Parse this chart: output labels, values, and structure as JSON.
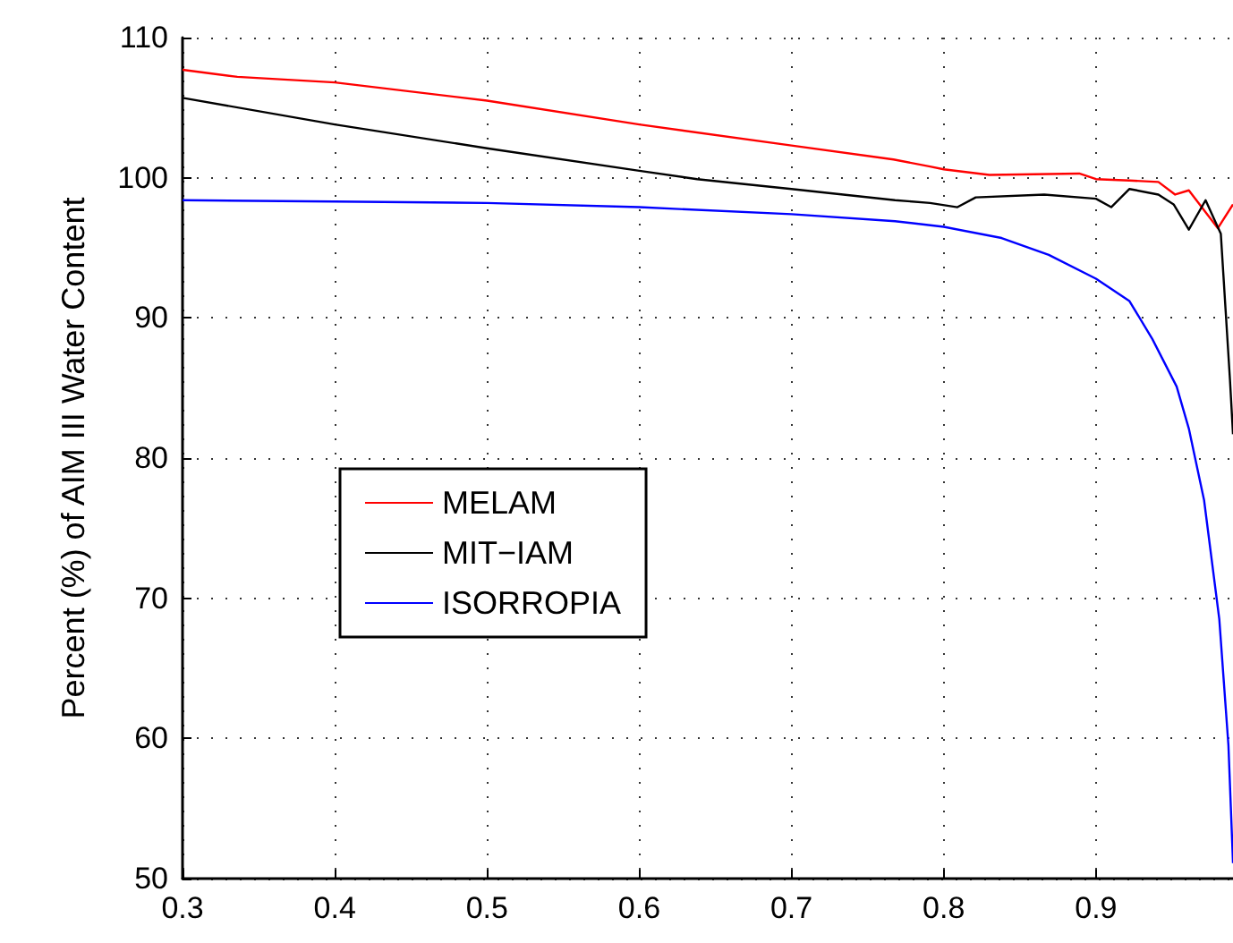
{
  "chart_data": {
    "type": "line",
    "ylabel": "Percent (%) of AIM III Water Content",
    "xlim": [
      0.3,
      0.99
    ],
    "xticks": [
      0.3,
      0.4,
      0.5,
      0.6,
      0.7,
      0.8,
      0.9
    ],
    "ylim": [
      50,
      110
    ],
    "yticks": [
      50,
      60,
      70,
      80,
      90,
      100,
      110
    ],
    "grid": true,
    "legend": "left",
    "marker": "none",
    "line_style": "solid",
    "series": [
      {
        "name": "MELAM",
        "color": "#ff0000",
        "x": [
          0.3,
          0.336,
          0.4,
          0.5,
          0.6,
          0.7,
          0.767,
          0.791,
          0.8,
          0.83,
          0.889,
          0.9,
          0.922,
          0.941,
          0.952,
          0.961,
          0.98,
          0.99
        ],
        "values": [
          107.7,
          107.2,
          106.8,
          105.5,
          103.8,
          102.3,
          101.3,
          100.8,
          100.6,
          100.2,
          100.3,
          99.9,
          99.8,
          99.7,
          98.8,
          99.1,
          96.4,
          98.1
        ]
      },
      {
        "name": "MIT−IAM",
        "color": "#000000",
        "x": [
          0.3,
          0.4,
          0.5,
          0.6,
          0.638,
          0.7,
          0.768,
          0.791,
          0.809,
          0.821,
          0.866,
          0.9,
          0.91,
          0.922,
          0.941,
          0.951,
          0.961,
          0.972,
          0.982,
          0.988,
          0.99
        ],
        "values": [
          105.7,
          103.8,
          102.1,
          100.5,
          99.9,
          99.2,
          98.4,
          98.2,
          97.9,
          98.6,
          98.8,
          98.5,
          97.9,
          99.2,
          98.8,
          98.1,
          96.3,
          98.4,
          96.0,
          85.6,
          81.7
        ]
      },
      {
        "name": "ISORROPIA",
        "color": "#0000ff",
        "x": [
          0.3,
          0.4,
          0.5,
          0.6,
          0.7,
          0.768,
          0.8,
          0.838,
          0.869,
          0.9,
          0.922,
          0.937,
          0.953,
          0.961,
          0.971,
          0.981,
          0.987,
          0.99
        ],
        "values": [
          98.4,
          98.3,
          98.2,
          97.9,
          97.4,
          96.9,
          96.5,
          95.7,
          94.5,
          92.8,
          91.2,
          88.5,
          85.1,
          82.1,
          77.0,
          68.5,
          59.5,
          51.1
        ]
      }
    ]
  }
}
